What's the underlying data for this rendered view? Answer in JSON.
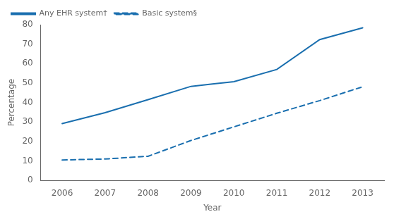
{
  "chart_data": {
    "type": "line",
    "xlabel": "Year",
    "ylabel": "Percentage",
    "xlim": [
      2005.5,
      2013.5
    ],
    "xticks": [
      2006,
      2007,
      2008,
      2009,
      2010,
      2011,
      2012,
      2013
    ],
    "ylim": [
      0,
      80
    ],
    "yticks": [
      0,
      10,
      20,
      30,
      40,
      50,
      60,
      70,
      80
    ],
    "grid": false,
    "legend": "upper left",
    "series": [
      {
        "name": "Any EHR system†",
        "color": "#1a6faf",
        "line_style": "solid",
        "x": [
          2006,
          2007,
          2008,
          2009,
          2009.5,
          2010,
          2011,
          2012,
          2013
        ],
        "values": [
          29.2,
          34.8,
          41.5,
          48.3,
          49.5,
          50.7,
          57.0,
          72.3,
          78.4
        ]
      },
      {
        "name": "Basic system§",
        "color": "#1a6faf",
        "line_style": "dashed",
        "x": [
          2006,
          2007,
          2008,
          2009,
          2010,
          2011,
          2012,
          2013
        ],
        "values": [
          10.5,
          11.0,
          12.4,
          20.5,
          27.5,
          34.5,
          41.0,
          48.1
        ]
      }
    ]
  }
}
